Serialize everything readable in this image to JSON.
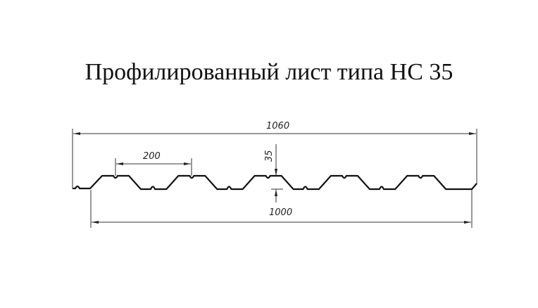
{
  "title": "Профилированный лист типа НС 35",
  "dimensions": {
    "total_width": "1060",
    "useful_width": "1000",
    "pitch": "200",
    "height": "35"
  },
  "colors": {
    "line": "#111111"
  }
}
